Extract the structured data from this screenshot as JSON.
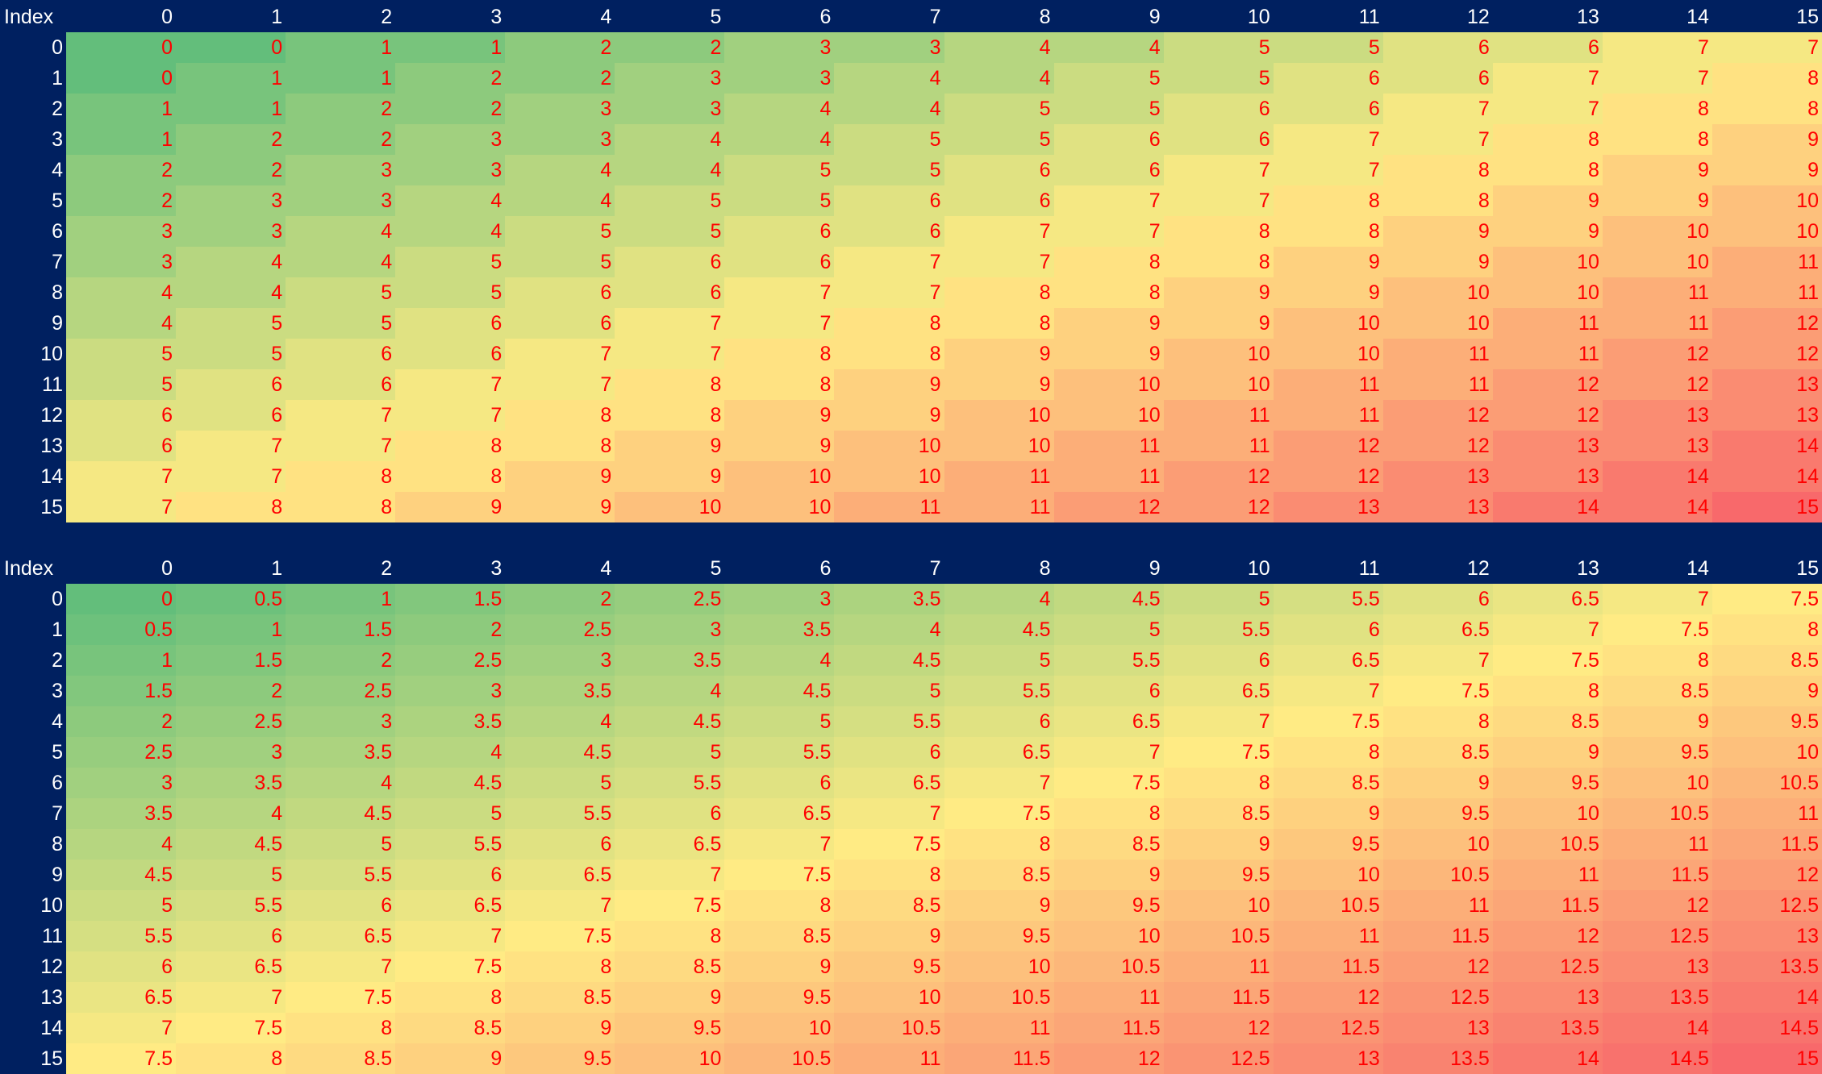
{
  "chart_data": [
    {
      "type": "heatmap",
      "corner_label": "Index",
      "columns": [
        0,
        1,
        2,
        3,
        4,
        5,
        6,
        7,
        8,
        9,
        10,
        11,
        12,
        13,
        14,
        15
      ],
      "rows": [
        0,
        1,
        2,
        3,
        4,
        5,
        6,
        7,
        8,
        9,
        10,
        11,
        12,
        13,
        14,
        15
      ],
      "color_scale": {
        "min": "#63be7b",
        "mid": "#ffeb84",
        "max": "#f8696b"
      },
      "value_range": [
        0,
        15
      ],
      "values": [
        [
          0,
          0,
          1,
          1,
          2,
          2,
          3,
          3,
          4,
          4,
          5,
          5,
          6,
          6,
          7,
          7
        ],
        [
          0,
          1,
          1,
          2,
          2,
          3,
          3,
          4,
          4,
          5,
          5,
          6,
          6,
          7,
          7,
          8
        ],
        [
          1,
          1,
          2,
          2,
          3,
          3,
          4,
          4,
          5,
          5,
          6,
          6,
          7,
          7,
          8,
          8
        ],
        [
          1,
          2,
          2,
          3,
          3,
          4,
          4,
          5,
          5,
          6,
          6,
          7,
          7,
          8,
          8,
          9
        ],
        [
          2,
          2,
          3,
          3,
          4,
          4,
          5,
          5,
          6,
          6,
          7,
          7,
          8,
          8,
          9,
          9
        ],
        [
          2,
          3,
          3,
          4,
          4,
          5,
          5,
          6,
          6,
          7,
          7,
          8,
          8,
          9,
          9,
          10
        ],
        [
          3,
          3,
          4,
          4,
          5,
          5,
          6,
          6,
          7,
          7,
          8,
          8,
          9,
          9,
          10,
          10
        ],
        [
          3,
          4,
          4,
          5,
          5,
          6,
          6,
          7,
          7,
          8,
          8,
          9,
          9,
          10,
          10,
          11
        ],
        [
          4,
          4,
          5,
          5,
          6,
          6,
          7,
          7,
          8,
          8,
          9,
          9,
          10,
          10,
          11,
          11
        ],
        [
          4,
          5,
          5,
          6,
          6,
          7,
          7,
          8,
          8,
          9,
          9,
          10,
          10,
          11,
          11,
          12
        ],
        [
          5,
          5,
          6,
          6,
          7,
          7,
          8,
          8,
          9,
          9,
          10,
          10,
          11,
          11,
          12,
          12
        ],
        [
          5,
          6,
          6,
          7,
          7,
          8,
          8,
          9,
          9,
          10,
          10,
          11,
          11,
          12,
          12,
          13
        ],
        [
          6,
          6,
          7,
          7,
          8,
          8,
          9,
          9,
          10,
          10,
          11,
          11,
          12,
          12,
          13,
          13
        ],
        [
          6,
          7,
          7,
          8,
          8,
          9,
          9,
          10,
          10,
          11,
          11,
          12,
          12,
          13,
          13,
          14
        ],
        [
          7,
          7,
          8,
          8,
          9,
          9,
          10,
          10,
          11,
          11,
          12,
          12,
          13,
          13,
          14,
          14
        ],
        [
          7,
          8,
          8,
          9,
          9,
          10,
          10,
          11,
          11,
          12,
          12,
          13,
          13,
          14,
          14,
          15
        ]
      ]
    },
    {
      "type": "heatmap",
      "corner_label": "Index",
      "columns": [
        0,
        1,
        2,
        3,
        4,
        5,
        6,
        7,
        8,
        9,
        10,
        11,
        12,
        13,
        14,
        15
      ],
      "rows": [
        0,
        1,
        2,
        3,
        4,
        5,
        6,
        7,
        8,
        9,
        10,
        11,
        12,
        13,
        14,
        15
      ],
      "color_scale": {
        "min": "#63be7b",
        "mid": "#ffeb84",
        "max": "#f8696b"
      },
      "value_range": [
        0,
        15
      ],
      "values": [
        [
          0,
          0.5,
          1,
          1.5,
          2,
          2.5,
          3,
          3.5,
          4,
          4.5,
          5,
          5.5,
          6,
          6.5,
          7,
          7.5
        ],
        [
          0.5,
          1,
          1.5,
          2,
          2.5,
          3,
          3.5,
          4,
          4.5,
          5,
          5.5,
          6,
          6.5,
          7,
          7.5,
          8
        ],
        [
          1,
          1.5,
          2,
          2.5,
          3,
          3.5,
          4,
          4.5,
          5,
          5.5,
          6,
          6.5,
          7,
          7.5,
          8,
          8.5
        ],
        [
          1.5,
          2,
          2.5,
          3,
          3.5,
          4,
          4.5,
          5,
          5.5,
          6,
          6.5,
          7,
          7.5,
          8,
          8.5,
          9
        ],
        [
          2,
          2.5,
          3,
          3.5,
          4,
          4.5,
          5,
          5.5,
          6,
          6.5,
          7,
          7.5,
          8,
          8.5,
          9,
          9.5
        ],
        [
          2.5,
          3,
          3.5,
          4,
          4.5,
          5,
          5.5,
          6,
          6.5,
          7,
          7.5,
          8,
          8.5,
          9,
          9.5,
          10
        ],
        [
          3,
          3.5,
          4,
          4.5,
          5,
          5.5,
          6,
          6.5,
          7,
          7.5,
          8,
          8.5,
          9,
          9.5,
          10,
          10.5
        ],
        [
          3.5,
          4,
          4.5,
          5,
          5.5,
          6,
          6.5,
          7,
          7.5,
          8,
          8.5,
          9,
          9.5,
          10,
          10.5,
          11
        ],
        [
          4,
          4.5,
          5,
          5.5,
          6,
          6.5,
          7,
          7.5,
          8,
          8.5,
          9,
          9.5,
          10,
          10.5,
          11,
          11.5
        ],
        [
          4.5,
          5,
          5.5,
          6,
          6.5,
          7,
          7.5,
          8,
          8.5,
          9,
          9.5,
          10,
          10.5,
          11,
          11.5,
          12
        ],
        [
          5,
          5.5,
          6,
          6.5,
          7,
          7.5,
          8,
          8.5,
          9,
          9.5,
          10,
          10.5,
          11,
          11.5,
          12,
          12.5
        ],
        [
          5.5,
          6,
          6.5,
          7,
          7.5,
          8,
          8.5,
          9,
          9.5,
          10,
          10.5,
          11,
          11.5,
          12,
          12.5,
          13
        ],
        [
          6,
          6.5,
          7,
          7.5,
          8,
          8.5,
          9,
          9.5,
          10,
          10.5,
          11,
          11.5,
          12,
          12.5,
          13,
          13.5
        ],
        [
          6.5,
          7,
          7.5,
          8,
          8.5,
          9,
          9.5,
          10,
          10.5,
          11,
          11.5,
          12,
          12.5,
          13,
          13.5,
          14
        ],
        [
          7,
          7.5,
          8,
          8.5,
          9,
          9.5,
          10,
          10.5,
          11,
          11.5,
          12,
          12.5,
          13,
          13.5,
          14,
          14.5
        ],
        [
          7.5,
          8,
          8.5,
          9,
          9.5,
          10,
          10.5,
          11,
          11.5,
          12,
          12.5,
          13,
          13.5,
          14,
          14.5,
          15
        ]
      ]
    }
  ],
  "colors": {
    "background": "#002060",
    "header_text": "#ffffff",
    "cell_text": "#ff0000"
  }
}
